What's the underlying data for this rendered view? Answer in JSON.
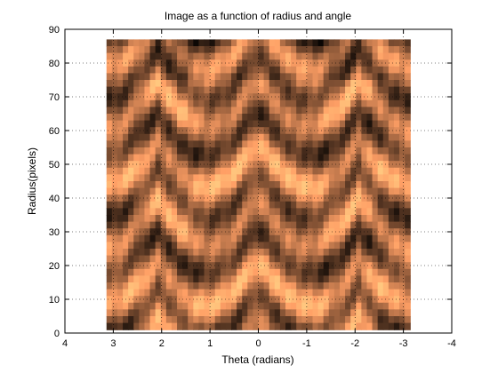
{
  "chart_data": {
    "type": "heatmap",
    "title": "Image as a function of radius and angle",
    "xlabel": "Theta (radians)",
    "ylabel": "Radius(pixels)",
    "x_direction": "reversed",
    "xlim": [
      4,
      -4
    ],
    "ylim": [
      0,
      90
    ],
    "x_ticks": [
      4,
      3,
      2,
      1,
      0,
      -1,
      -2,
      -3,
      -4
    ],
    "x_tick_labels": [
      "4",
      "3",
      "2",
      "1",
      "0",
      "-1",
      "-2",
      "-3",
      "-4"
    ],
    "y_ticks": [
      0,
      10,
      20,
      30,
      40,
      50,
      60,
      70,
      80,
      90
    ],
    "y_tick_labels": [
      "0",
      "10",
      "20",
      "30",
      "40",
      "50",
      "60",
      "70",
      "80",
      "90"
    ],
    "image_extent": {
      "theta": [
        3.14,
        -3.14
      ],
      "radius": [
        1,
        87
      ]
    },
    "colormap": "copper",
    "grid": true
  }
}
